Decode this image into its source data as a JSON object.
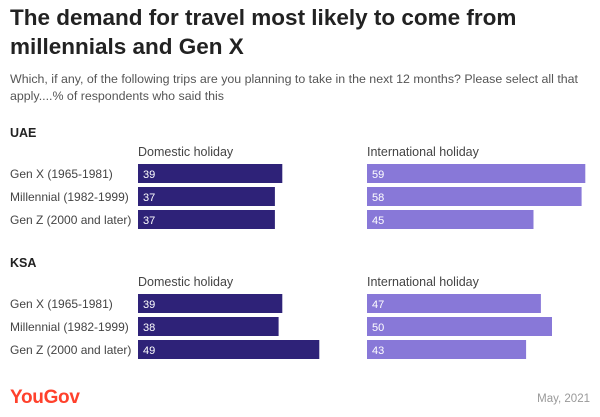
{
  "title": "The demand for travel most likely to come from millennials and Gen X",
  "subtitle": "Which, if any, of the following trips are you planning to take in the next 12 months? Please select all that apply....% of respondents who said this",
  "footer": {
    "brand": "YouGov",
    "date": "May, 2021"
  },
  "colors": {
    "domestic": "#2e2278",
    "international": "#8878d8",
    "brand": "#ff412c"
  },
  "chart_data": {
    "type": "bar",
    "orientation": "horizontal",
    "categories": [
      "Gen X (1965-1981)",
      "Millennial (1982-1999)",
      "Gen Z (2000 and later)"
    ],
    "panels": [
      "Domestic holiday",
      "International holiday"
    ],
    "groups": [
      {
        "name": "UAE",
        "series": [
          {
            "name": "Domestic holiday",
            "values": [
              39,
              37,
              37
            ]
          },
          {
            "name": "International holiday",
            "values": [
              59,
              58,
              45
            ]
          }
        ]
      },
      {
        "name": "KSA",
        "series": [
          {
            "name": "Domestic holiday",
            "values": [
              39,
              38,
              49
            ]
          },
          {
            "name": "International holiday",
            "values": [
              47,
              50,
              43
            ]
          }
        ]
      }
    ]
  }
}
